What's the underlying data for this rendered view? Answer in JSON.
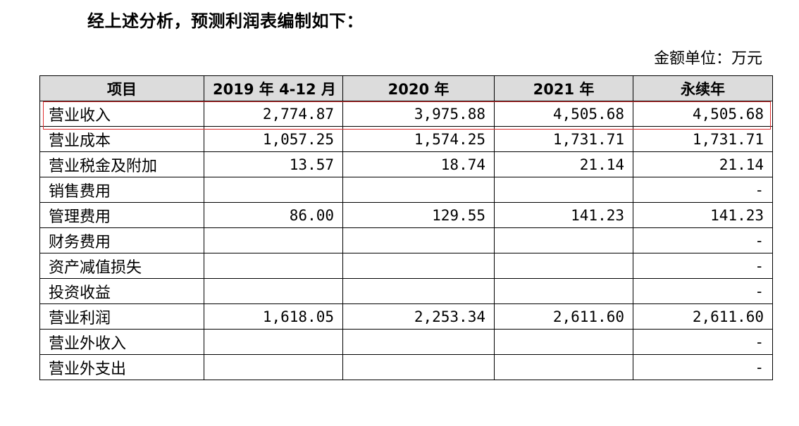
{
  "heading": "经上述分析，预测利润表编制如下：",
  "unit_label": "金额单位：万元",
  "table": {
    "headers": [
      "项目",
      "2019 年 4-12 月",
      "2020 年",
      "2021 年",
      "永续年"
    ],
    "rows": [
      {
        "label": "营业收入",
        "values": [
          "2,774.87",
          "3,975.88",
          "4,505.68",
          "4,505.68"
        ]
      },
      {
        "label": "营业成本",
        "values": [
          "1,057.25",
          "1,574.25",
          "1,731.71",
          "1,731.71"
        ]
      },
      {
        "label": "营业税金及附加",
        "values": [
          "13.57",
          "18.74",
          "21.14",
          "21.14"
        ]
      },
      {
        "label": "销售费用",
        "values": [
          "",
          "",
          "",
          "-"
        ]
      },
      {
        "label": "管理费用",
        "values": [
          "86.00",
          "129.55",
          "141.23",
          "141.23"
        ]
      },
      {
        "label": "财务费用",
        "values": [
          "",
          "",
          "",
          "-"
        ]
      },
      {
        "label": "资产减值损失",
        "values": [
          "",
          "",
          "",
          "-"
        ]
      },
      {
        "label": "投资收益",
        "values": [
          "",
          "",
          "",
          "-"
        ]
      },
      {
        "label": "营业利润",
        "values": [
          "1,618.05",
          "2,253.34",
          "2,611.60",
          "2,611.60"
        ]
      },
      {
        "label": "营业外收入",
        "values": [
          "",
          "",
          "",
          "-"
        ]
      },
      {
        "label": "营业外支出",
        "values": [
          "",
          "",
          "",
          "-"
        ]
      }
    ]
  }
}
